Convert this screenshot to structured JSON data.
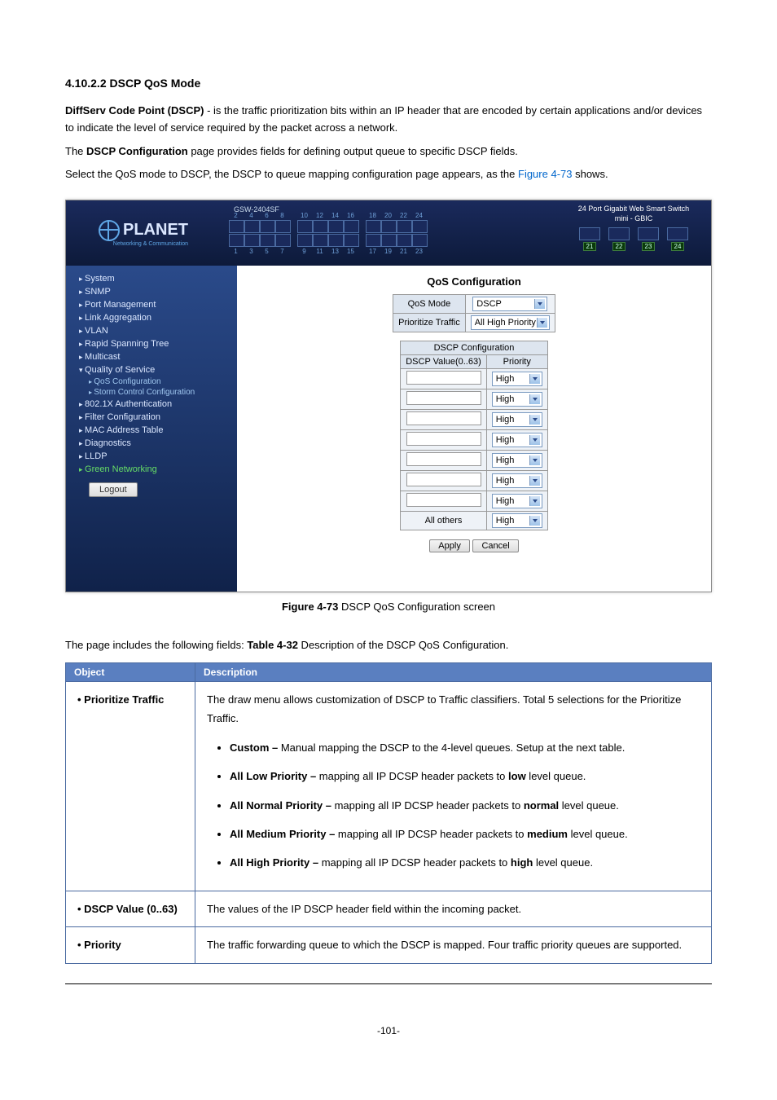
{
  "page": {
    "number": "-101-"
  },
  "section": {
    "title": "4.10.2.2 DSCP QoS Mode",
    "para1_a": "DiffServ Code Point (DSCP)",
    "para1_b": " - is the traffic prioritization bits within an IP header that are encoded by certain applications and/or devices to indicate the level of service required by the packet across a network.",
    "para2_a": "The ",
    "para2_b": "DSCP Configuration",
    "para2_c": " page provides fields for defining output queue to specific DSCP fields.",
    "para3_a": "Select the QoS mode to DSCP, the DSCP to queue mapping configuration page appears, as the ",
    "para3_link": "Figure 4-73",
    "para3_c": " shows.",
    "caption_a": "Figure 4-73",
    "caption_b": " DSCP QoS Configuration screen",
    "para4_a": "The page includes the following fields: ",
    "para4_b": "Table 4-32",
    "para4_c": " Description of the DSCP QoS Configuration."
  },
  "screenshot": {
    "model": "GSW-2404SF",
    "brand": "PLANET",
    "brand_sub": "Networking & Communication",
    "header_right1": "24 Port Gigabit Web Smart Switch",
    "header_right2": "mini - GBIC",
    "gbic_ports": [
      "21",
      "22",
      "23",
      "24"
    ],
    "sidebar": [
      {
        "label": "System",
        "type": "item"
      },
      {
        "label": "SNMP",
        "type": "item"
      },
      {
        "label": "Port Management",
        "type": "item"
      },
      {
        "label": "Link Aggregation",
        "type": "item"
      },
      {
        "label": "VLAN",
        "type": "item"
      },
      {
        "label": "Rapid Spanning Tree",
        "type": "item"
      },
      {
        "label": "Multicast",
        "type": "item"
      },
      {
        "label": "Quality of Service",
        "type": "item expanded"
      },
      {
        "label": "QoS Configuration",
        "type": "subitem"
      },
      {
        "label": "Storm Control Configuration",
        "type": "subitem"
      },
      {
        "label": "802.1X Authentication",
        "type": "item"
      },
      {
        "label": "Filter Configuration",
        "type": "item"
      },
      {
        "label": "MAC Address Table",
        "type": "item"
      },
      {
        "label": "Diagnostics",
        "type": "item"
      },
      {
        "label": "LLDP",
        "type": "item"
      },
      {
        "label": "Green Networking",
        "type": "item green"
      }
    ],
    "logout": "Logout",
    "main": {
      "title": "QoS Configuration",
      "qos_mode_label": "QoS Mode",
      "qos_mode_value": "DSCP",
      "prio_traffic_label": "Prioritize Traffic",
      "prio_traffic_value": "All High Priority",
      "dscp_cfg_header": "DSCP Configuration",
      "col1": "DSCP Value(0..63)",
      "col2": "Priority",
      "all_others": "All others",
      "priority_value": "High",
      "apply": "Apply",
      "cancel": "Cancel"
    }
  },
  "table": {
    "head_obj": "Object",
    "head_desc": "Description",
    "rows": [
      {
        "obj": "Prioritize Traffic",
        "desc_intro": "The draw menu allows customization of DSCP to Traffic classifiers. Total 5 selections for the Prioritize Traffic.",
        "bullets": [
          {
            "b": "Custom – ",
            "t": "Manual mapping the DSCP to the 4-level queues. Setup at the next table."
          },
          {
            "b": "All Low Priority – ",
            "t": "mapping all IP DCSP header packets to ",
            "suffix": "low",
            "after": " level queue."
          },
          {
            "b": "All Normal Priority – ",
            "t": "mapping all IP DCSP header packets to ",
            "suffix": "normal",
            "after": " level queue."
          },
          {
            "b": "All Medium Priority – ",
            "t": "mapping all IP DCSP header packets to ",
            "suffix": "medium",
            "after": " level queue."
          },
          {
            "b": "All High Priority – ",
            "t": "mapping all IP DCSP header packets to ",
            "suffix": "high",
            "after": " level queue."
          }
        ]
      },
      {
        "obj": "DSCP Value (0..63)",
        "desc_plain": "The values of the IP DSCP header field within the incoming packet."
      },
      {
        "obj": "Priority",
        "desc_plain": "The traffic forwarding queue to which the DSCP is mapped. Four traffic priority queues are supported."
      }
    ]
  }
}
